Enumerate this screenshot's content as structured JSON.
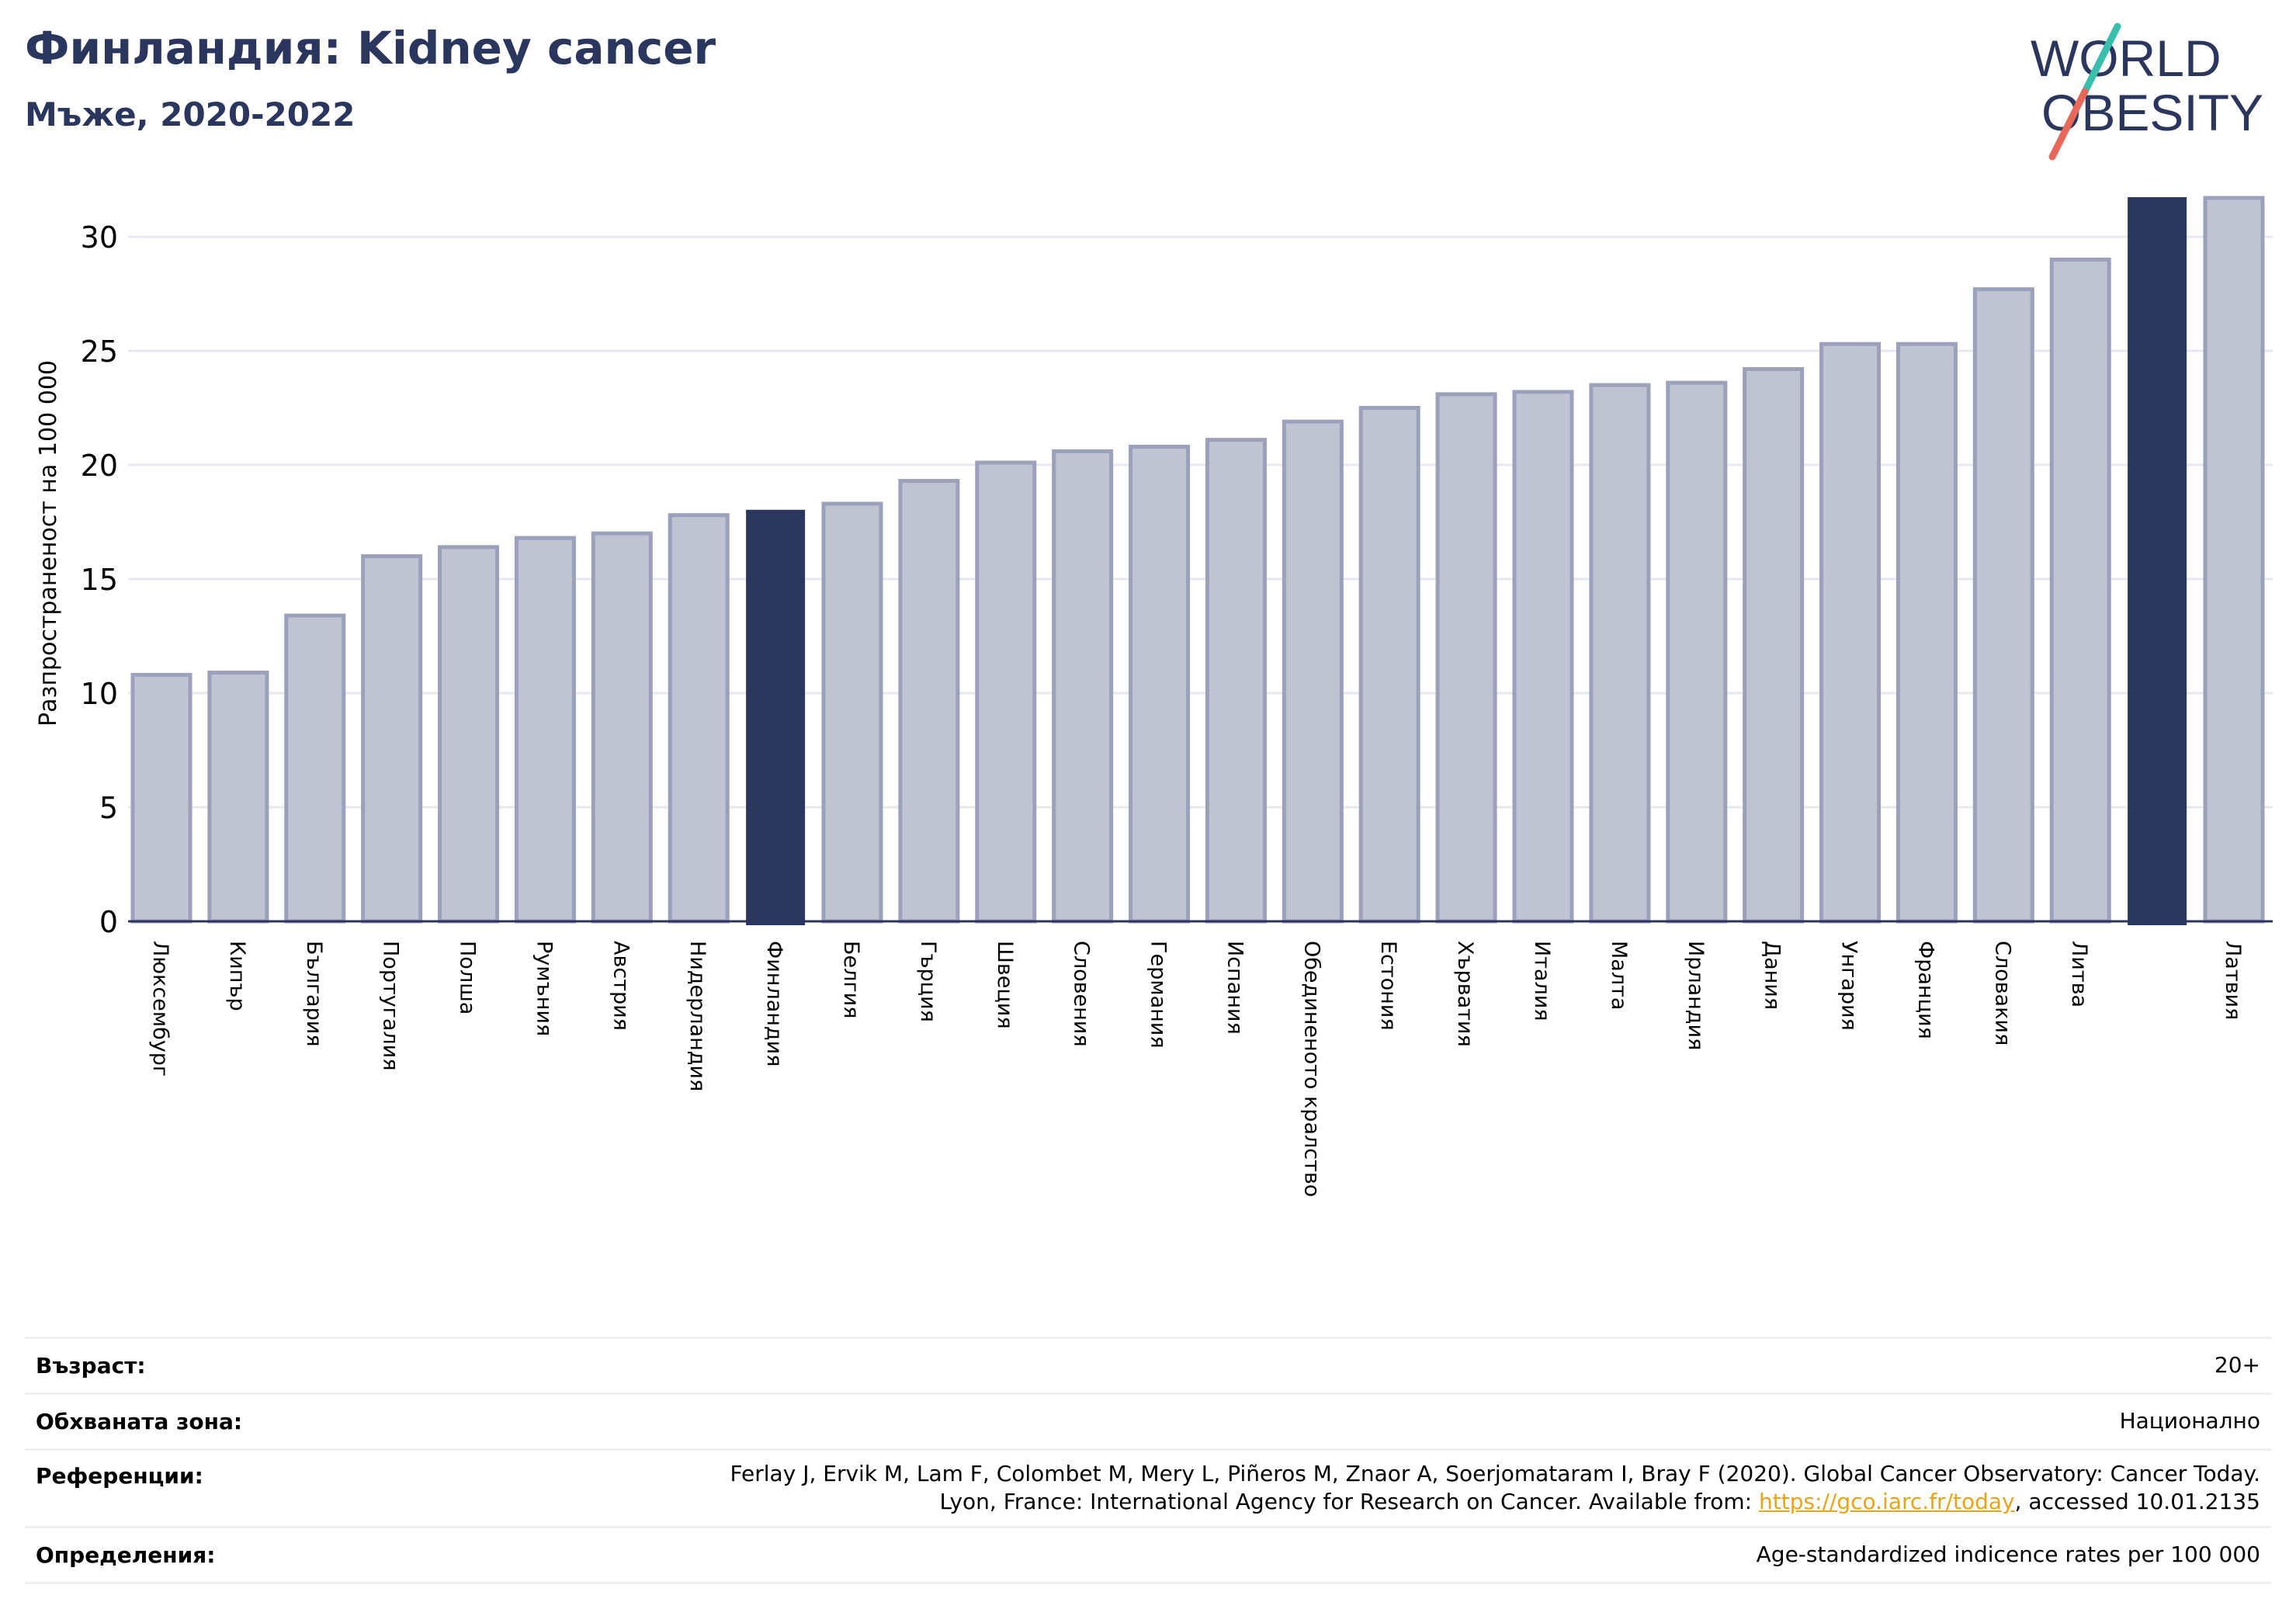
{
  "header": {
    "title": "Финландия: Kidney cancer",
    "subtitle": "Мъже, 2020-2022"
  },
  "logo": {
    "line1": "WORLD",
    "line2": "OBESITY",
    "text_color": "#2b365e",
    "slash_colors": [
      "#3bbfad",
      "#e8685a"
    ]
  },
  "chart_data": {
    "type": "bar",
    "title": "",
    "xlabel": "",
    "ylabel": "Разпространеност  на 100 000",
    "ylim": [
      0,
      32.5
    ],
    "yticks": [
      0,
      5,
      10,
      15,
      20,
      25,
      30
    ],
    "grid": true,
    "categories": [
      "Люксембург",
      "Кипър",
      "България",
      "Португалия",
      "Полша",
      "Румъния",
      "Австрия",
      "Нидерландия",
      "Финландия",
      "Белгия",
      "Гърция",
      "Швеция",
      "Словения",
      "Германия",
      "Испания",
      "Обединеното кралство",
      "Естония",
      "Хърватия",
      "Италия",
      "Малта",
      "Ирландия",
      "Дания",
      "Унгария",
      "Франция",
      "Словакия",
      "Литва",
      "",
      "Латвия"
    ],
    "values": [
      10.8,
      10.9,
      13.4,
      16.0,
      16.4,
      16.8,
      17.0,
      17.8,
      18.0,
      18.3,
      19.3,
      20.1,
      20.6,
      20.8,
      21.1,
      21.9,
      22.5,
      23.1,
      23.2,
      23.5,
      23.6,
      24.2,
      25.3,
      25.3,
      27.7,
      29.0,
      31.7,
      31.7
    ],
    "highlight_indices": [
      8,
      26
    ],
    "colors": {
      "bar_fill": "#c0c3d1",
      "bar_edge": "#9ba1bb",
      "highlight": "#2b365e",
      "grid": "#e6e8ef",
      "axis": "#2b365e"
    }
  },
  "info": {
    "age_label": "Възраст:",
    "age_value": "20+",
    "coverage_label": "Обхваната зона:",
    "coverage_value": "Национално",
    "references_label": "Референции:",
    "references_line1": "Ferlay J, Ervik M, Lam F, Colombet M, Mery L, Piñeros M, Znaor A, Soerjomataram I, Bray F (2020). Global Cancer Observatory: Cancer Today.",
    "references_line2_prefix": "Lyon, France: International Agency for Research on Cancer. Available from: ",
    "references_link": "https://gco.iarc.fr/today",
    "references_line2_suffix": ", accessed 10.01.2135",
    "definitions_label": "Определения:",
    "definitions_value": "Age-standardized indicence rates per 100 000"
  }
}
